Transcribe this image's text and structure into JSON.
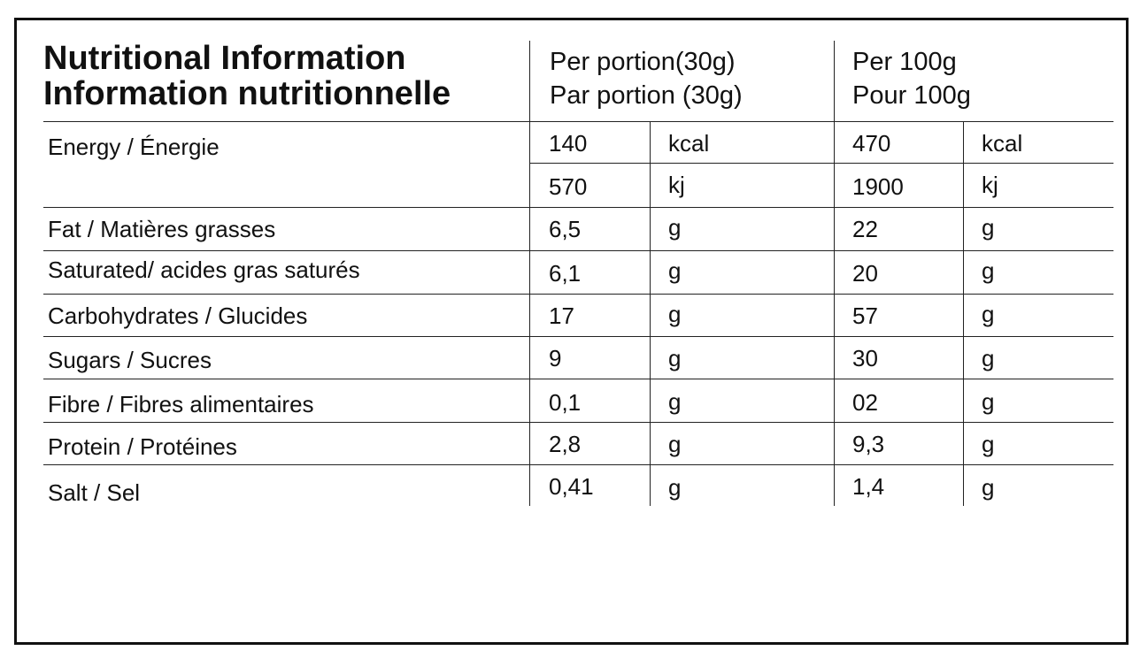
{
  "header": {
    "title_en": "Nutritional Information",
    "title_fr": "Information nutritionnelle",
    "portion_en": "Per portion(30g)",
    "portion_fr": "Par portion (30g)",
    "per100_en": "Per 100g",
    "per100_fr": "Pour 100g"
  },
  "energy": {
    "label": "Energy / Énergie",
    "kcal": {
      "portion": "140",
      "portion_unit": "kcal",
      "per100": "470",
      "per100_unit": "kcal"
    },
    "kj": {
      "portion": "570",
      "portion_unit": "kj",
      "per100": "1900",
      "per100_unit": "kj"
    }
  },
  "rows": [
    {
      "label": "Fat / Matières grasses",
      "portion": "6,5",
      "portion_unit": "g",
      "per100": "22",
      "per100_unit": "g"
    },
    {
      "label": "Saturated/ acides gras saturés",
      "portion": "6,1",
      "portion_unit": "g",
      "per100": "20",
      "per100_unit": "g"
    },
    {
      "label": "Carbohydrates / Glucides",
      "portion": "17",
      "portion_unit": "g",
      "per100": "57",
      "per100_unit": "g"
    },
    {
      "label": "Sugars / Sucres",
      "portion": "9",
      "portion_unit": "g",
      "per100": "30",
      "per100_unit": "g"
    },
    {
      "label": "Fibre / Fibres alimentaires",
      "portion": "0,1",
      "portion_unit": "g",
      "per100": "02",
      "per100_unit": "g"
    },
    {
      "label": "Protein / Protéines",
      "portion": "2,8",
      "portion_unit": "g",
      "per100": "9,3",
      "per100_unit": "g"
    },
    {
      "label": "Salt / Sel",
      "portion": "0,41",
      "portion_unit": "g",
      "per100": "1,4",
      "per100_unit": "g"
    }
  ]
}
